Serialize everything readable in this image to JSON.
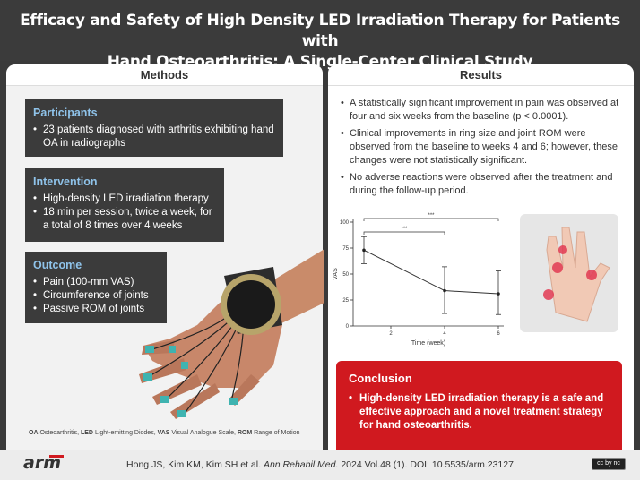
{
  "title": {
    "line1": "Efficacy and Safety of High Density LED Irradiation Therapy for Patients with",
    "line2": "Hand Osteoarthritis: A Single-Center Clinical Study"
  },
  "methods": {
    "heading": "Methods",
    "participants": {
      "title": "Participants",
      "items": [
        "23 patients diagnosed with arthritis exhibiting hand OA in radiographs"
      ]
    },
    "intervention": {
      "title": "Intervention",
      "items": [
        "High-density LED irradiation therapy",
        "18 min per session, twice a week, for a total of 8 times over 4 weeks"
      ]
    },
    "outcome": {
      "title": "Outcome",
      "items": [
        "Pain (100-mm VAS)",
        "Circumference of joints",
        "Passive ROM of joints"
      ]
    },
    "abbreviations": [
      {
        "abbr": "OA",
        "full": "Osteoarthritis,"
      },
      {
        "abbr": "LED",
        "full": "Light-emitting Diodes,"
      },
      {
        "abbr": "VAS",
        "full": "Visual Analogue Scale,"
      },
      {
        "abbr": "ROM",
        "full": "Range of Motion"
      }
    ]
  },
  "results": {
    "heading": "Results",
    "items": [
      "A statistically significant improvement in pain was observed at four and six weeks from the baseline (p < 0.0001).",
      "Clinical improvements in ring size and joint ROM were observed from the baseline to weeks 4 and 6; however, these changes were not statistically significant.",
      "No adverse reactions were observed after the treatment and during the follow-up period."
    ]
  },
  "chart_data": {
    "type": "line",
    "x": [
      1,
      4,
      6
    ],
    "values": [
      73,
      34,
      31
    ],
    "error_low": [
      60,
      12,
      11
    ],
    "error_high": [
      86,
      57,
      53
    ],
    "xlabel": "Time (week)",
    "ylabel": "VAS",
    "ylim": [
      0,
      100
    ],
    "xlim": [
      0.6,
      6.2
    ],
    "yticks": [
      0,
      25,
      50,
      75,
      100
    ],
    "xticks": [
      2,
      4,
      6
    ],
    "significance": [
      {
        "from": 1,
        "to": 4,
        "label": "***"
      },
      {
        "from": 1,
        "to": 6,
        "label": "***"
      }
    ]
  },
  "conclusion": {
    "title": "Conclusion",
    "items": [
      "High-density LED irradiation therapy is a safe and effective approach and a novel treatment strategy for hand osteoarthritis."
    ]
  },
  "footer": {
    "logo": "arm",
    "authors": "Hong JS, Kim KM, Kim SH et al.",
    "journal": "Ann Rehabil Med.",
    "details": "2024 Vol.48 (1). DOI: 10.5535/arm.23127",
    "license": "cc by nc"
  },
  "colors": {
    "dark": "#3b3b3b",
    "accent_blue": "#8fc3ea",
    "accent_red": "#d0191f",
    "led_teal": "#3fb3b0"
  }
}
